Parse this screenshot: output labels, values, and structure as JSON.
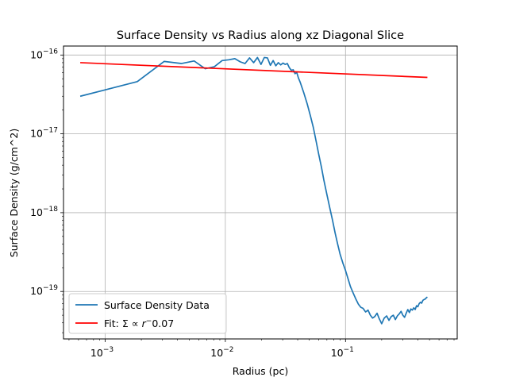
{
  "chart_data": {
    "type": "line",
    "title": "Surface Density vs Radius along xz Diagonal Slice",
    "xlabel": "Radius (pc)",
    "ylabel": "Surface Density (g/cm^2)",
    "xscale": "log",
    "yscale": "log",
    "xlim": [
      0.00045,
      0.85
    ],
    "ylim": [
      2.5e-20,
      1.3e-16
    ],
    "grid": true,
    "legend_position": "lower left",
    "x_ticks": [
      {
        "value": 0.001,
        "base": "10",
        "exp": "−3"
      },
      {
        "value": 0.01,
        "base": "10",
        "exp": "−2"
      },
      {
        "value": 0.1,
        "base": "10",
        "exp": "−1"
      }
    ],
    "y_ticks": [
      {
        "value": 1e-19,
        "base": "10",
        "exp": "−19"
      },
      {
        "value": 1e-18,
        "base": "10",
        "exp": "−18"
      },
      {
        "value": 1e-17,
        "base": "10",
        "exp": "−17"
      },
      {
        "value": 1e-16,
        "base": "10",
        "exp": "−16"
      }
    ],
    "series": [
      {
        "name": "Surface Density Data",
        "color": "#1f77b4",
        "x": [
          0.00062,
          0.00185,
          0.0031,
          0.0043,
          0.0055,
          0.0068,
          0.0081,
          0.0094,
          0.0107,
          0.012,
          0.0133,
          0.0146,
          0.0159,
          0.0172,
          0.0185,
          0.0198,
          0.0211,
          0.0224,
          0.0237,
          0.025,
          0.0263,
          0.0276,
          0.0289,
          0.0302,
          0.0315,
          0.0328,
          0.0341,
          0.0354,
          0.0367,
          0.038,
          0.0393,
          0.0406,
          0.042,
          0.045,
          0.048,
          0.051,
          0.054,
          0.057,
          0.06,
          0.063,
          0.066,
          0.07,
          0.074,
          0.078,
          0.082,
          0.086,
          0.09,
          0.095,
          0.1,
          0.105,
          0.11,
          0.116,
          0.122,
          0.128,
          0.134,
          0.14,
          0.147,
          0.154,
          0.161,
          0.168,
          0.175,
          0.183,
          0.191,
          0.2,
          0.21,
          0.22,
          0.23,
          0.24,
          0.25,
          0.26,
          0.27,
          0.28,
          0.29,
          0.3,
          0.31,
          0.32,
          0.33,
          0.34,
          0.35,
          0.36,
          0.37,
          0.38,
          0.39,
          0.4,
          0.41,
          0.42,
          0.43,
          0.44,
          0.45,
          0.46,
          0.47,
          0.48
        ],
        "y": [
          3e-17,
          4.6e-17,
          8.3e-17,
          7.8e-17,
          8.4e-17,
          6.7e-17,
          7.1e-17,
          8.5e-17,
          8.7e-17,
          9e-17,
          8.2e-17,
          7.8e-17,
          9.2e-17,
          8e-17,
          9.3e-17,
          7.6e-17,
          9.3e-17,
          9.2e-17,
          7.4e-17,
          8.5e-17,
          7.3e-17,
          8e-17,
          7.5e-17,
          7.9e-17,
          7.6e-17,
          7.8e-17,
          6.9e-17,
          6.4e-17,
          6.5e-17,
          5.8e-17,
          6e-17,
          5.1e-17,
          4.5e-17,
          3.3e-17,
          2.4e-17,
          1.7e-17,
          1.2e-17,
          8e-18,
          5.4e-18,
          3.8e-18,
          2.6e-18,
          1.7e-18,
          1.15e-18,
          8e-19,
          5.5e-19,
          4e-19,
          3e-19,
          2.3e-19,
          1.85e-19,
          1.45e-19,
          1.15e-19,
          9.5e-20,
          8e-20,
          6.9e-20,
          6.3e-20,
          6.1e-20,
          5.5e-20,
          5.8e-20,
          5e-20,
          4.6e-20,
          4.8e-20,
          5.3e-20,
          4.5e-20,
          3.9e-20,
          4.6e-20,
          4.9e-20,
          4.3e-20,
          4.8e-20,
          5e-20,
          4.4e-20,
          4.9e-20,
          5.2e-20,
          5.6e-20,
          5e-20,
          4.7e-20,
          5.3e-20,
          5.9e-20,
          5.4e-20,
          6e-20,
          5.8e-20,
          6.2e-20,
          5.9e-20,
          6.6e-20,
          6.4e-20,
          7e-20,
          7.3e-20,
          7.1e-20,
          7.7e-20,
          7.9e-20,
          8e-20,
          8.3e-20,
          8.5e-20
        ]
      },
      {
        "name": "Fit: Σ ∝ r^− 0.07",
        "color": "#ff0000",
        "x": [
          0.00062,
          0.48
        ],
        "y": [
          8e-17,
          5.2e-17
        ]
      }
    ],
    "legend": {
      "data_label": "Surface Density Data",
      "fit_label_prefix": "Fit: Σ ∝ ",
      "fit_label_r": "r",
      "fit_label_sup": "−",
      "fit_label_suffix": "0.07"
    }
  }
}
